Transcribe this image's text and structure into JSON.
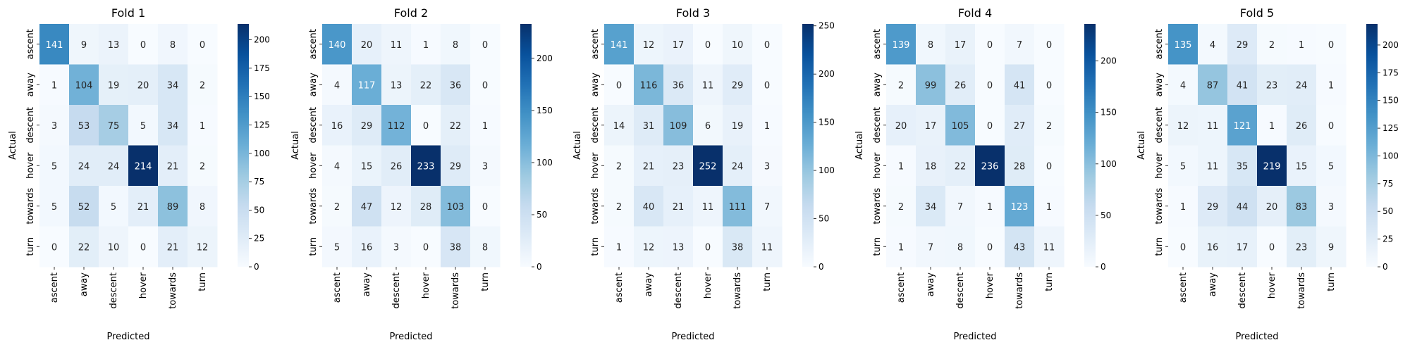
{
  "chart_data": [
    {
      "type": "heatmap",
      "title": "Fold 1",
      "xlabel": "Predicted",
      "ylabel": "Actual",
      "categories": [
        "ascent",
        "away",
        "descent",
        "hover",
        "towards",
        "turn"
      ],
      "matrix": [
        [
          141,
          9,
          13,
          0,
          8,
          0
        ],
        [
          1,
          104,
          19,
          20,
          34,
          2
        ],
        [
          3,
          53,
          75,
          5,
          34,
          1
        ],
        [
          5,
          24,
          24,
          214,
          21,
          2
        ],
        [
          5,
          52,
          5,
          21,
          89,
          8
        ],
        [
          0,
          22,
          10,
          0,
          21,
          12
        ]
      ],
      "colorbar": {
        "min": 0,
        "max": 214,
        "ticks": [
          0,
          25,
          50,
          75,
          100,
          125,
          150,
          175,
          200
        ]
      }
    },
    {
      "type": "heatmap",
      "title": "Fold 2",
      "xlabel": "Predicted",
      "ylabel": "Actual",
      "categories": [
        "ascent",
        "away",
        "descent",
        "hover",
        "towards",
        "turn"
      ],
      "matrix": [
        [
          140,
          20,
          11,
          1,
          8,
          0
        ],
        [
          4,
          117,
          13,
          22,
          36,
          0
        ],
        [
          16,
          29,
          112,
          0,
          22,
          1
        ],
        [
          4,
          15,
          26,
          233,
          29,
          3
        ],
        [
          2,
          47,
          12,
          28,
          103,
          0
        ],
        [
          5,
          16,
          3,
          0,
          38,
          8
        ]
      ],
      "colorbar": {
        "min": 0,
        "max": 233,
        "ticks": [
          0,
          50,
          100,
          150,
          200
        ]
      }
    },
    {
      "type": "heatmap",
      "title": "Fold 3",
      "xlabel": "Predicted",
      "ylabel": "Actual",
      "categories": [
        "ascent",
        "away",
        "descent",
        "hover",
        "towards",
        "turn"
      ],
      "matrix": [
        [
          141,
          12,
          17,
          0,
          10,
          0
        ],
        [
          0,
          116,
          36,
          11,
          29,
          0
        ],
        [
          14,
          31,
          109,
          6,
          19,
          1
        ],
        [
          2,
          21,
          23,
          252,
          24,
          3
        ],
        [
          2,
          40,
          21,
          11,
          111,
          7
        ],
        [
          1,
          12,
          13,
          0,
          38,
          11
        ]
      ],
      "colorbar": {
        "min": 0,
        "max": 252,
        "ticks": [
          0,
          50,
          100,
          150,
          200,
          250
        ]
      }
    },
    {
      "type": "heatmap",
      "title": "Fold 4",
      "xlabel": "Predicted",
      "ylabel": "Actual",
      "categories": [
        "ascent",
        "away",
        "descent",
        "hover",
        "towards",
        "turn"
      ],
      "matrix": [
        [
          139,
          8,
          17,
          0,
          7,
          0
        ],
        [
          2,
          99,
          26,
          0,
          41,
          0
        ],
        [
          20,
          17,
          105,
          0,
          27,
          2
        ],
        [
          1,
          18,
          22,
          236,
          28,
          0
        ],
        [
          2,
          34,
          7,
          1,
          123,
          1
        ],
        [
          1,
          7,
          8,
          0,
          43,
          11
        ]
      ],
      "colorbar": {
        "min": 0,
        "max": 236,
        "ticks": [
          0,
          50,
          100,
          150,
          200
        ]
      }
    },
    {
      "type": "heatmap",
      "title": "Fold 5",
      "xlabel": "Predicted",
      "ylabel": "Actual",
      "categories": [
        "ascent",
        "away",
        "descent",
        "hover",
        "towards",
        "turn"
      ],
      "matrix": [
        [
          135,
          4,
          29,
          2,
          1,
          0
        ],
        [
          4,
          87,
          41,
          23,
          24,
          1
        ],
        [
          12,
          11,
          121,
          1,
          26,
          0
        ],
        [
          5,
          11,
          35,
          219,
          15,
          5
        ],
        [
          1,
          29,
          44,
          20,
          83,
          3
        ],
        [
          0,
          16,
          17,
          0,
          23,
          9
        ]
      ],
      "colorbar": {
        "min": 0,
        "max": 219,
        "ticks": [
          0,
          25,
          50,
          75,
          100,
          125,
          150,
          175,
          200
        ]
      }
    }
  ]
}
